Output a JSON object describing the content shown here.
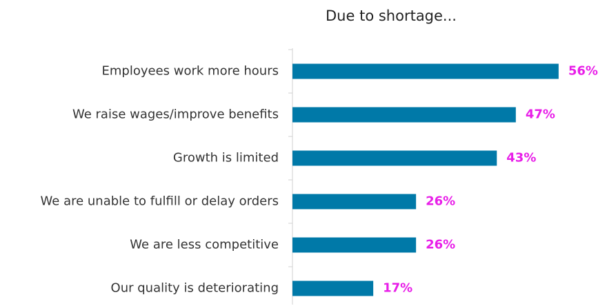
{
  "chart_data": {
    "type": "bar",
    "orientation": "horizontal",
    "title": "Due to shortage...",
    "categories": [
      "Employees work more hours",
      "We raise wages/improve benefits",
      "Growth is limited",
      "We are unable to fulfill or delay orders",
      "We are less competitive",
      "Our quality is deteriorating"
    ],
    "values": [
      56,
      47,
      43,
      26,
      26,
      17
    ],
    "value_labels": [
      "56%",
      "47%",
      "43%",
      "26%",
      "26%",
      "17%"
    ],
    "color": "#0079a8",
    "label_color": "#e81ee8"
  }
}
